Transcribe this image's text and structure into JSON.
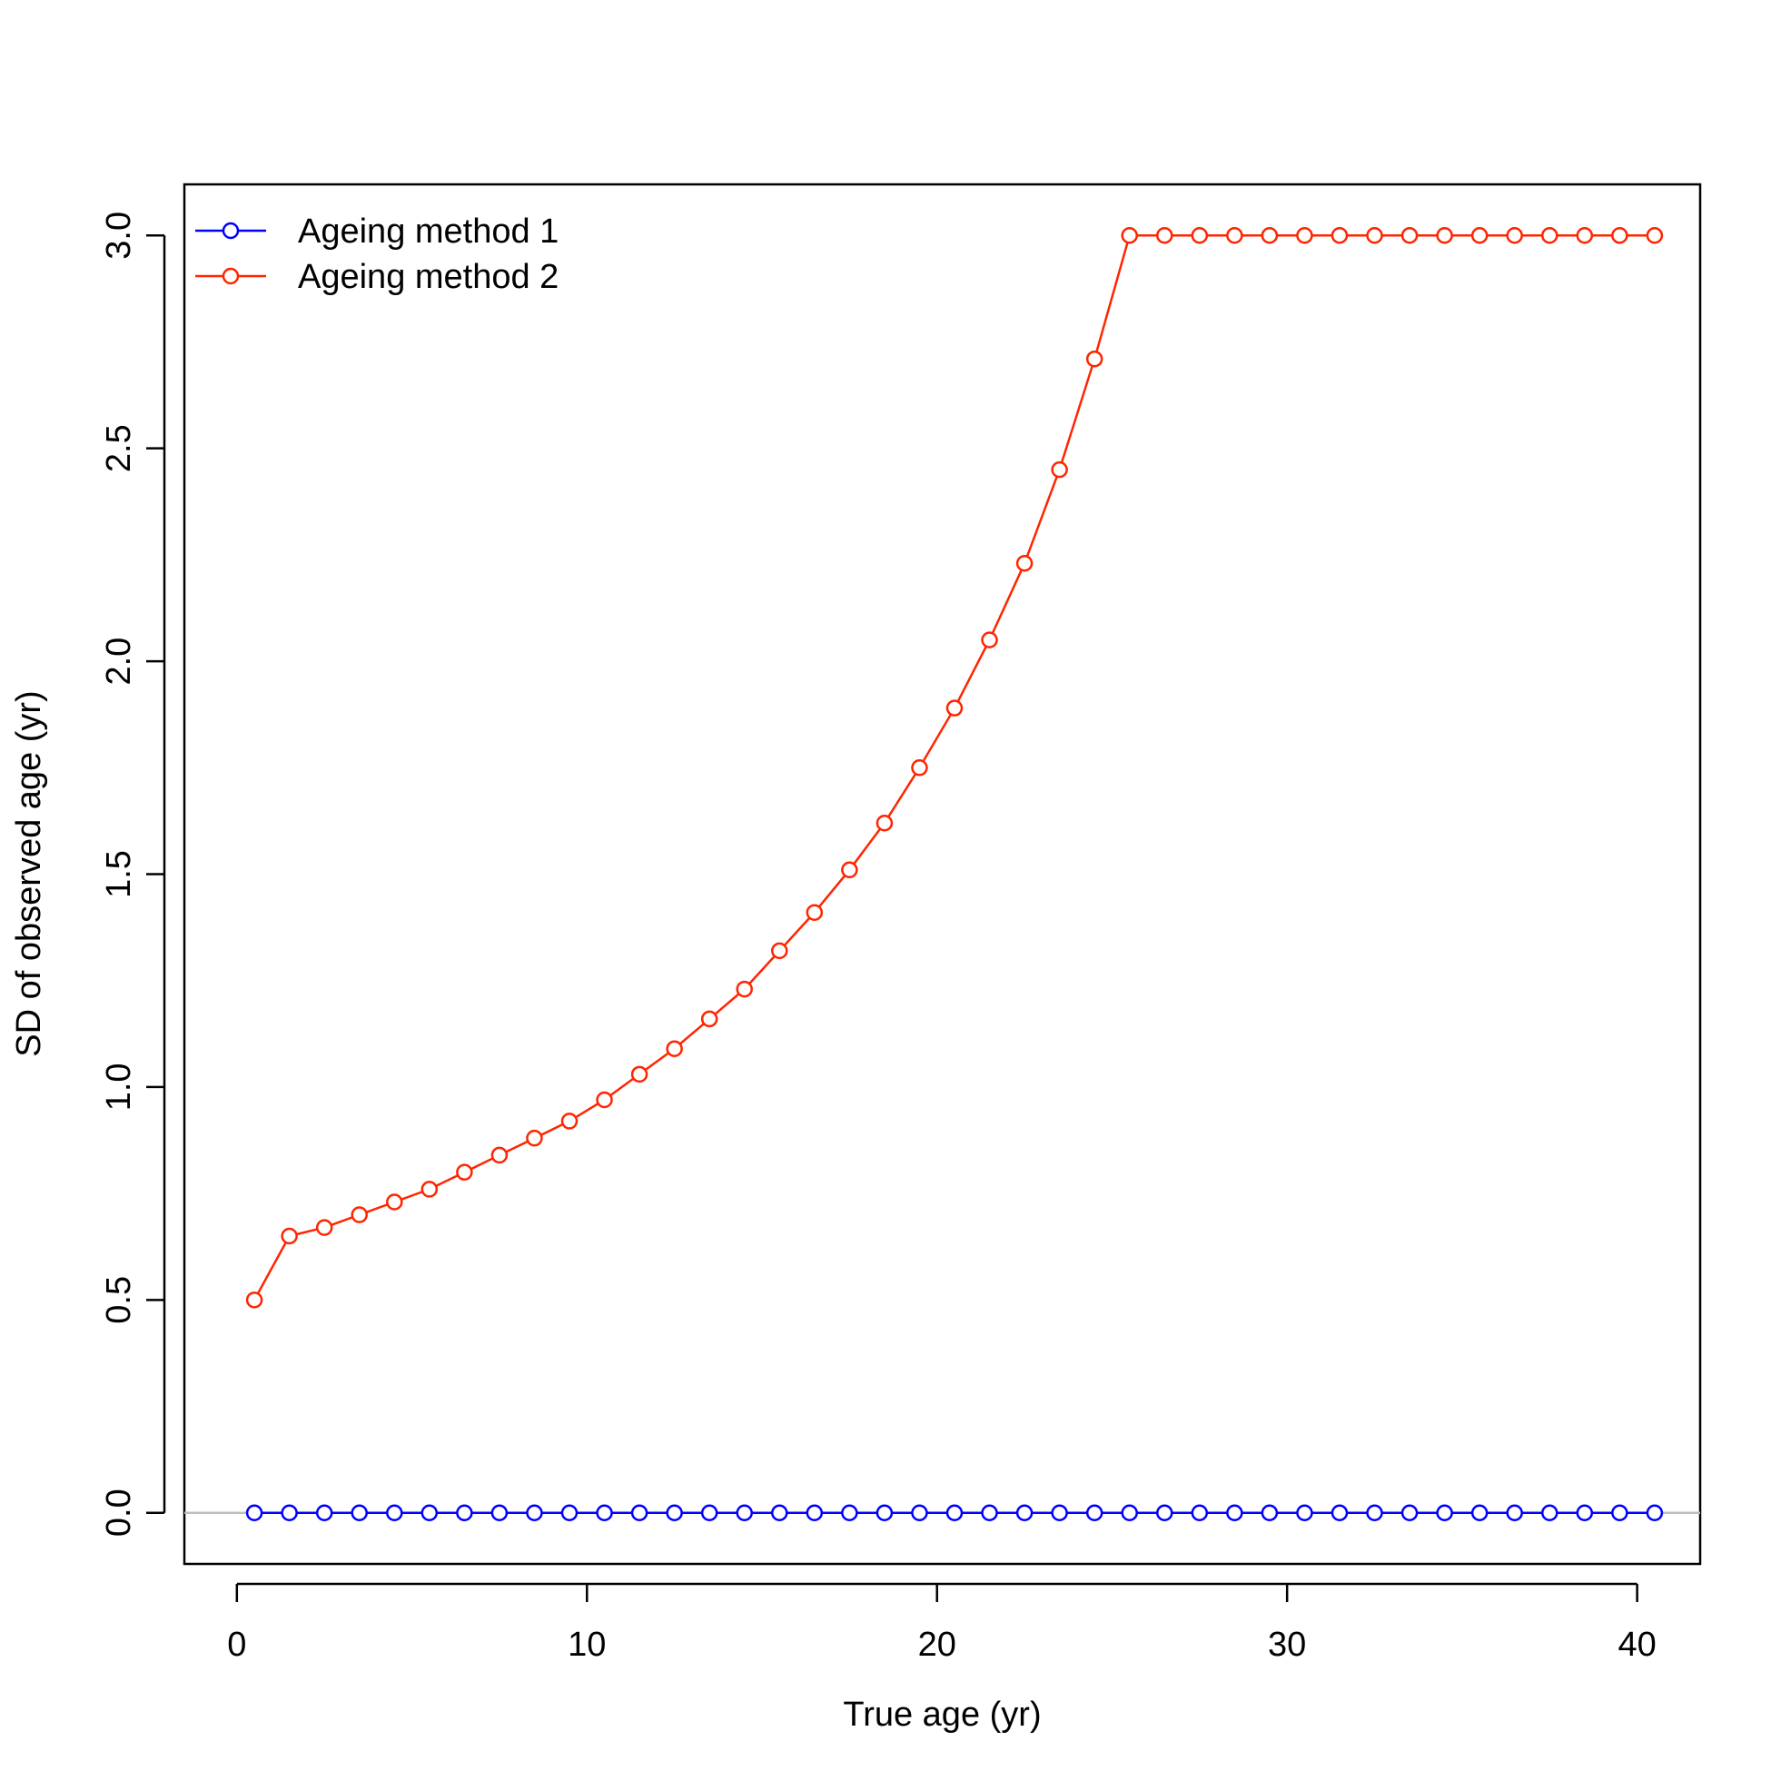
{
  "chart_data": {
    "type": "line",
    "xlabel": "True age (yr)",
    "ylabel": "SD of observed age (yr)",
    "xlim": [
      -1.5,
      41.8
    ],
    "ylim": [
      -0.12,
      3.12
    ],
    "x_ticks": [
      0,
      10,
      20,
      30,
      40
    ],
    "x_tick_labels": [
      "0",
      "10",
      "20",
      "30",
      "40"
    ],
    "y_ticks": [
      0,
      0.5,
      1,
      1.5,
      2,
      2.5,
      3
    ],
    "y_tick_labels": [
      "0.0",
      "0.5",
      "1.0",
      "1.5",
      "2.0",
      "2.5",
      "3.0"
    ],
    "grid": false,
    "legend": "top-left",
    "reference_line": {
      "y": 0,
      "color": "#bebebe"
    },
    "x": [
      0.5,
      1.5,
      2.5,
      3.5,
      4.5,
      5.5,
      6.5,
      7.5,
      8.5,
      9.5,
      10.5,
      11.5,
      12.5,
      13.5,
      14.5,
      15.5,
      16.5,
      17.5,
      18.5,
      19.5,
      20.5,
      21.5,
      22.5,
      23.5,
      24.5,
      25.5,
      26.5,
      27.5,
      28.5,
      29.5,
      30.5,
      31.5,
      32.5,
      33.5,
      34.5,
      35.5,
      36.5,
      37.5,
      38.5,
      39.5,
      40.5
    ],
    "series": [
      {
        "name": "Ageing method 1",
        "color": "#0000ff",
        "marker": "open-circle",
        "values": [
          0,
          0,
          0,
          0,
          0,
          0,
          0,
          0,
          0,
          0,
          0,
          0,
          0,
          0,
          0,
          0,
          0,
          0,
          0,
          0,
          0,
          0,
          0,
          0,
          0,
          0,
          0,
          0,
          0,
          0,
          0,
          0,
          0,
          0,
          0,
          0,
          0,
          0,
          0,
          0,
          0
        ]
      },
      {
        "name": "Ageing method 2",
        "color": "#ff2500",
        "marker": "open-circle",
        "values": [
          0.5,
          0.65,
          0.67,
          0.7,
          0.73,
          0.76,
          0.8,
          0.84,
          0.88,
          0.92,
          0.97,
          1.03,
          1.09,
          1.16,
          1.23,
          1.32,
          1.41,
          1.51,
          1.62,
          1.75,
          1.89,
          2.05,
          2.23,
          2.45,
          2.71,
          3,
          3,
          3,
          3,
          3,
          3,
          3,
          3,
          3,
          3,
          3,
          3,
          3,
          3,
          3,
          3
        ]
      }
    ]
  }
}
